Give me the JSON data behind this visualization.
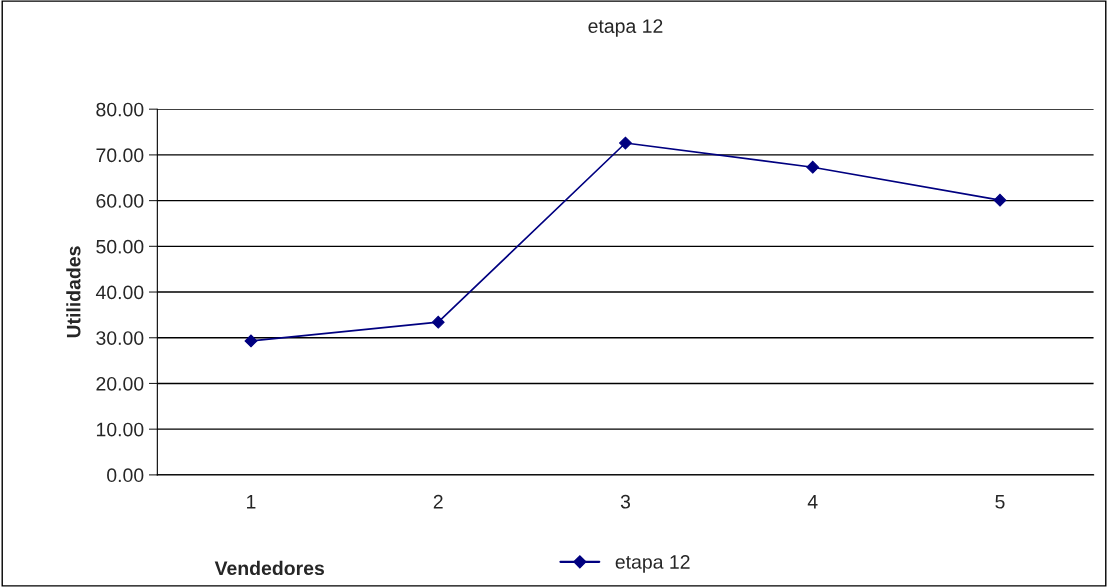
{
  "chart_data": {
    "type": "line",
    "title": "etapa 12",
    "xlabel": "Vendedores",
    "ylabel": "Utilidades",
    "categories": [
      "1",
      "2",
      "3",
      "4",
      "5"
    ],
    "series": [
      {
        "name": "etapa 12",
        "color": "#000080",
        "values": [
          29.3,
          33.4,
          72.6,
          67.3,
          60.1
        ]
      }
    ],
    "ylim": [
      0,
      80
    ],
    "yticks": [
      {
        "value": 0,
        "label": "0.00"
      },
      {
        "value": 10,
        "label": "10.00"
      },
      {
        "value": 20,
        "label": "20.00"
      },
      {
        "value": 30,
        "label": "30.00"
      },
      {
        "value": 40,
        "label": "40.00"
      },
      {
        "value": 50,
        "label": "50.00"
      },
      {
        "value": 60,
        "label": "60.00"
      },
      {
        "value": 70,
        "label": "70.00"
      },
      {
        "value": 80,
        "label": "80.00"
      }
    ],
    "grid": "y",
    "legend": "bottom",
    "marker": "diamond",
    "line_style": "solid"
  }
}
